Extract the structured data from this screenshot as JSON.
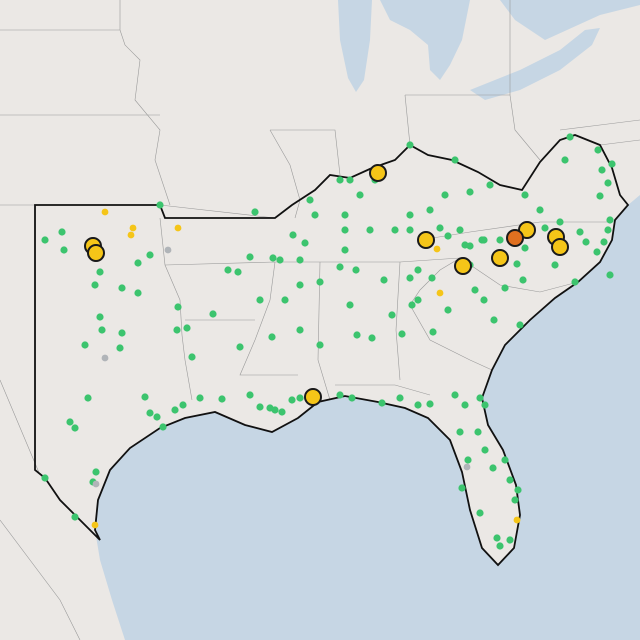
{
  "map": {
    "marker_colors": [
      "#3cc46e",
      "#f5c518",
      "#e07020",
      "#b0b4b8"
    ],
    "marker_stroke": "#1a1a1a"
  }
}
